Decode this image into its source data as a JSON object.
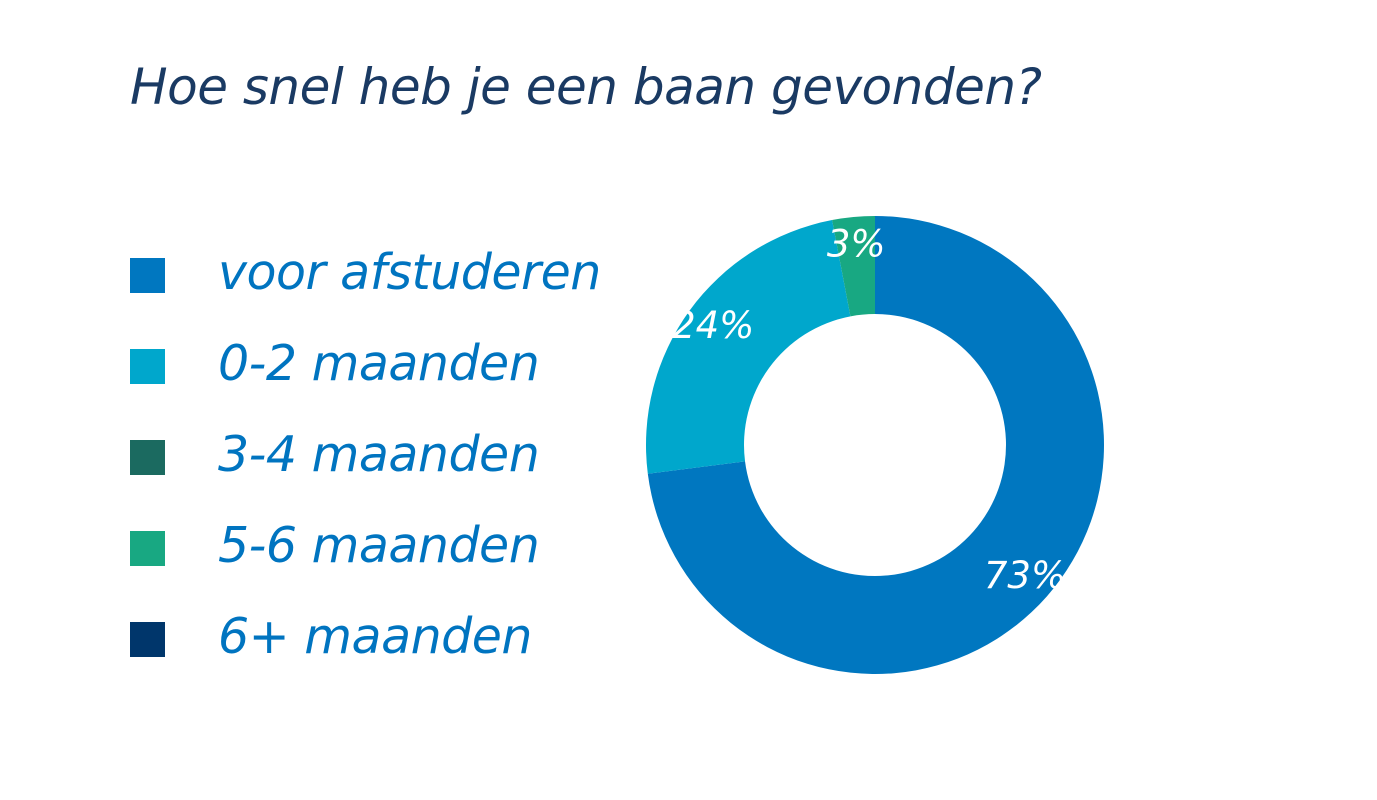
{
  "chart_data": {
    "type": "pie",
    "donut": true,
    "title": "Hoe snel heb je een baan gevonden?",
    "categories": [
      "voor afstuderen",
      "0-2 maanden",
      "3-4 maanden",
      "5-6 maanden",
      "6+ maanden"
    ],
    "values": [
      73,
      24,
      0,
      3,
      0
    ],
    "value_labels": [
      "73%",
      "24%",
      "",
      "3%",
      ""
    ],
    "colors": [
      "#0077c0",
      "#00a7cc",
      "#1b6a60",
      "#18a882",
      "#00366b"
    ],
    "legend_position": "left",
    "start": "top, clockwise"
  }
}
